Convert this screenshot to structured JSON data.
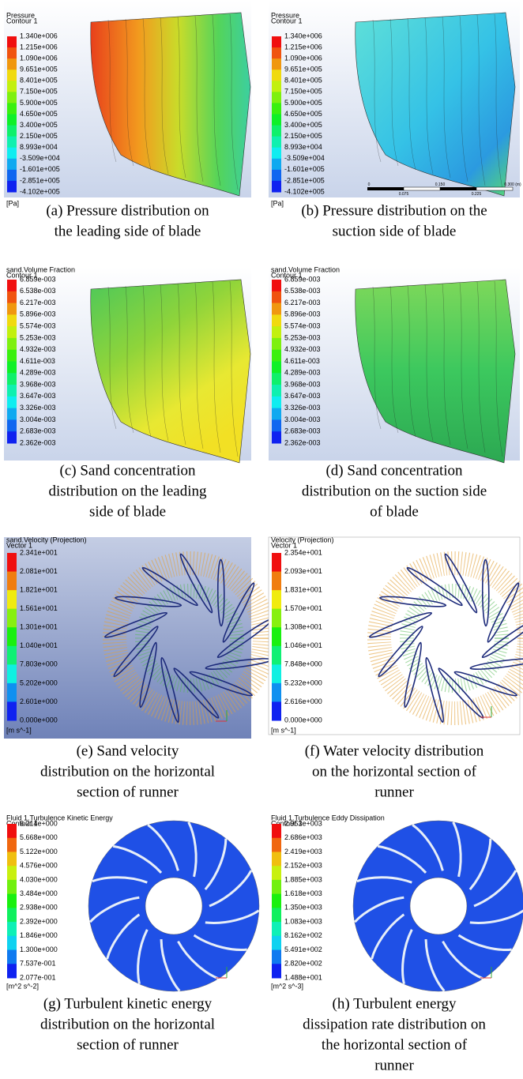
{
  "panels": [
    {
      "title": [
        "Pressure",
        "Contour 1"
      ],
      "values": [
        "1.340e+006",
        "1.215e+006",
        "1.090e+006",
        "9.651e+005",
        "8.401e+005",
        "7.150e+005",
        "5.900e+005",
        "4.650e+005",
        "3.400e+005",
        "2.150e+005",
        "8.993e+004",
        "-3.509e+004",
        "-1.601e+005",
        "-2.851e+005",
        "-4.102e+005"
      ],
      "unit": "[Pa]",
      "caption": [
        "(a) Pressure distribution on",
        "the leading side of blade"
      ]
    },
    {
      "title": [
        "Pressure",
        "Contour 1"
      ],
      "values": [
        "1.340e+006",
        "1.215e+006",
        "1.090e+006",
        "9.651e+005",
        "8.401e+005",
        "7.150e+005",
        "5.900e+005",
        "4.650e+005",
        "3.400e+005",
        "2.150e+005",
        "8.993e+004",
        "-3.509e+004",
        "-1.601e+005",
        "-2.851e+005",
        "-4.102e+005"
      ],
      "unit": "[Pa]",
      "caption": [
        "(b) Pressure distribution on the",
        "suction side of blade"
      ]
    },
    {
      "title": [
        "sand.Volume Fraction",
        "Contour 1"
      ],
      "values": [
        "6.859e-003",
        "6.538e-003",
        "6.217e-003",
        "5.896e-003",
        "5.574e-003",
        "5.253e-003",
        "4.932e-003",
        "4.611e-003",
        "4.289e-003",
        "3.968e-003",
        "3.647e-003",
        "3.326e-003",
        "3.004e-003",
        "2.683e-003",
        "2.362e-003"
      ],
      "caption": [
        "(c) Sand concentration",
        "distribution on the leading",
        "side of blade"
      ]
    },
    {
      "title": [
        "sand.Volume Fraction",
        "Contour 1"
      ],
      "values": [
        "6.859e-003",
        "6.538e-003",
        "6.217e-003",
        "5.896e-003",
        "5.574e-003",
        "5.253e-003",
        "4.932e-003",
        "4.611e-003",
        "4.289e-003",
        "3.968e-003",
        "3.647e-003",
        "3.326e-003",
        "3.004e-003",
        "2.683e-003",
        "2.362e-003"
      ],
      "caption": [
        "(d) Sand concentration",
        "distribution on the suction side",
        "of blade"
      ]
    },
    {
      "title": [
        "sand.Velocity (Projection)",
        "Vector 1"
      ],
      "values": [
        "2.341e+001",
        "2.081e+001",
        "1.821e+001",
        "1.561e+001",
        "1.301e+001",
        "1.040e+001",
        "7.803e+000",
        "5.202e+000",
        "2.601e+000",
        "0.000e+000"
      ],
      "unit": "[m s^-1]",
      "caption": [
        "(e) Sand velocity",
        "distribution on the horizontal",
        "section of runner"
      ]
    },
    {
      "title": [
        "Velocity (Projection)",
        "Vector 1"
      ],
      "values": [
        "2.354e+001",
        "2.093e+001",
        "1.831e+001",
        "1.570e+001",
        "1.308e+001",
        "1.046e+001",
        "7.848e+000",
        "5.232e+000",
        "2.616e+000",
        "0.000e+000"
      ],
      "unit": "[m s^-1]",
      "caption": [
        "(f) Water velocity distribution",
        "on the horizontal section of",
        "runner"
      ]
    },
    {
      "title": [
        "Fluid 1.Turbulence Kinetic Energy",
        "Contour 1"
      ],
      "values": [
        "6.214e+000",
        "5.668e+000",
        "5.122e+000",
        "4.576e+000",
        "4.030e+000",
        "3.484e+000",
        "2.938e+000",
        "2.392e+000",
        "1.846e+000",
        "1.300e+000",
        "7.537e-001",
        "2.077e-001"
      ],
      "unit": "[m^2 s^-2]",
      "caption": [
        "(g) Turbulent kinetic energy",
        "distribution on the horizontal",
        "section of runner"
      ]
    },
    {
      "title": [
        "Fluid 1.Turbulence Eddy Dissipation",
        "Contour 1"
      ],
      "values": [
        "2.953e+003",
        "2.686e+003",
        "2.419e+003",
        "2.152e+003",
        "1.885e+003",
        "1.618e+003",
        "1.350e+003",
        "1.083e+003",
        "8.162e+002",
        "5.491e+002",
        "2.820e+002",
        "1.488e+001"
      ],
      "unit": "[m^2 s^-3]",
      "caption": [
        "(h) Turbulent energy",
        "dissipation rate distribution on",
        "the horizontal section of",
        "runner"
      ]
    }
  ],
  "scale_bar": {
    "top": [
      "0",
      "0.150",
      "0.300 (m)"
    ],
    "bottom": [
      "0.075",
      "0.225"
    ]
  }
}
